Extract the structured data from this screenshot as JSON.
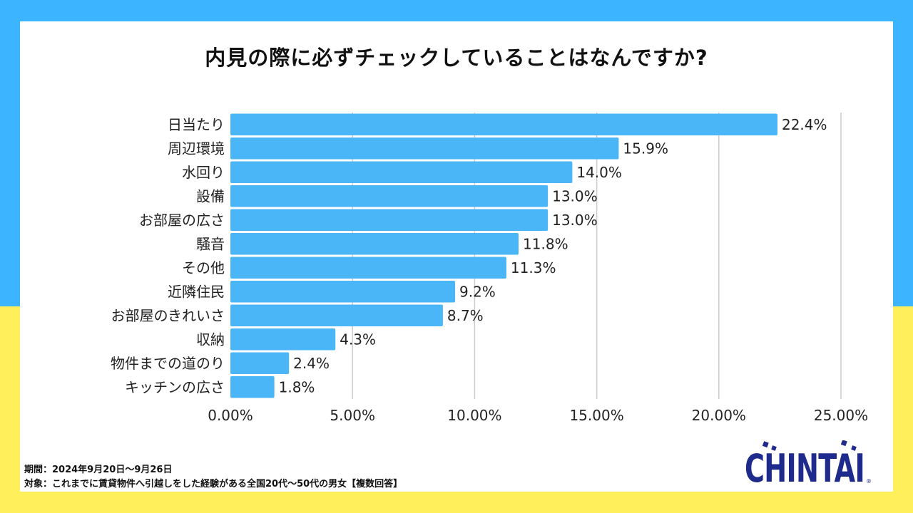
{
  "title": "内見の際に必ずチェックしていることはなんですか?",
  "colors": {
    "background_top": "#3DB4FF",
    "background_bottom": "#FFEF5A",
    "bar": "#4AB6F7",
    "grid": "#cccccc",
    "logo": "#1E2A8C"
  },
  "chart_data": {
    "type": "bar",
    "orientation": "horizontal",
    "title": "内見の際に必ずチェックしていることはなんですか?",
    "categories": [
      "日当たり",
      "周辺環境",
      "水回り",
      "設備",
      "お部屋の広さ",
      "騒音",
      "その他",
      "近隣住民",
      "お部屋のきれいさ",
      "収納",
      "物件までの道のり",
      "キッチンの広さ"
    ],
    "values": [
      22.4,
      15.9,
      14.0,
      13.0,
      13.0,
      11.8,
      11.3,
      9.2,
      8.7,
      4.3,
      2.4,
      1.8
    ],
    "value_labels": [
      "22.4%",
      "15.9%",
      "14.0%",
      "13.0%",
      "13.0%",
      "11.8%",
      "11.3%",
      "9.2%",
      "8.7%",
      "4.3%",
      "2.4%",
      "1.8%"
    ],
    "xlim": [
      0,
      25
    ],
    "xticks": [
      0,
      5,
      10,
      15,
      20,
      25
    ],
    "xtick_labels": [
      "0.00%",
      "5.00%",
      "10.00%",
      "15.00%",
      "20.00%",
      "25.00%"
    ],
    "xlabel": "",
    "ylabel": "",
    "grid": "vertical",
    "legend": "none"
  },
  "footnotes": {
    "period": "期間：2024年9月20日～9月26日",
    "target": "対象：これまでに賃貸物件へ引越しをした経験がある全国20代～50代の男女【複数回答】"
  },
  "logo": {
    "text": "CHINTAI",
    "registered": "®"
  }
}
